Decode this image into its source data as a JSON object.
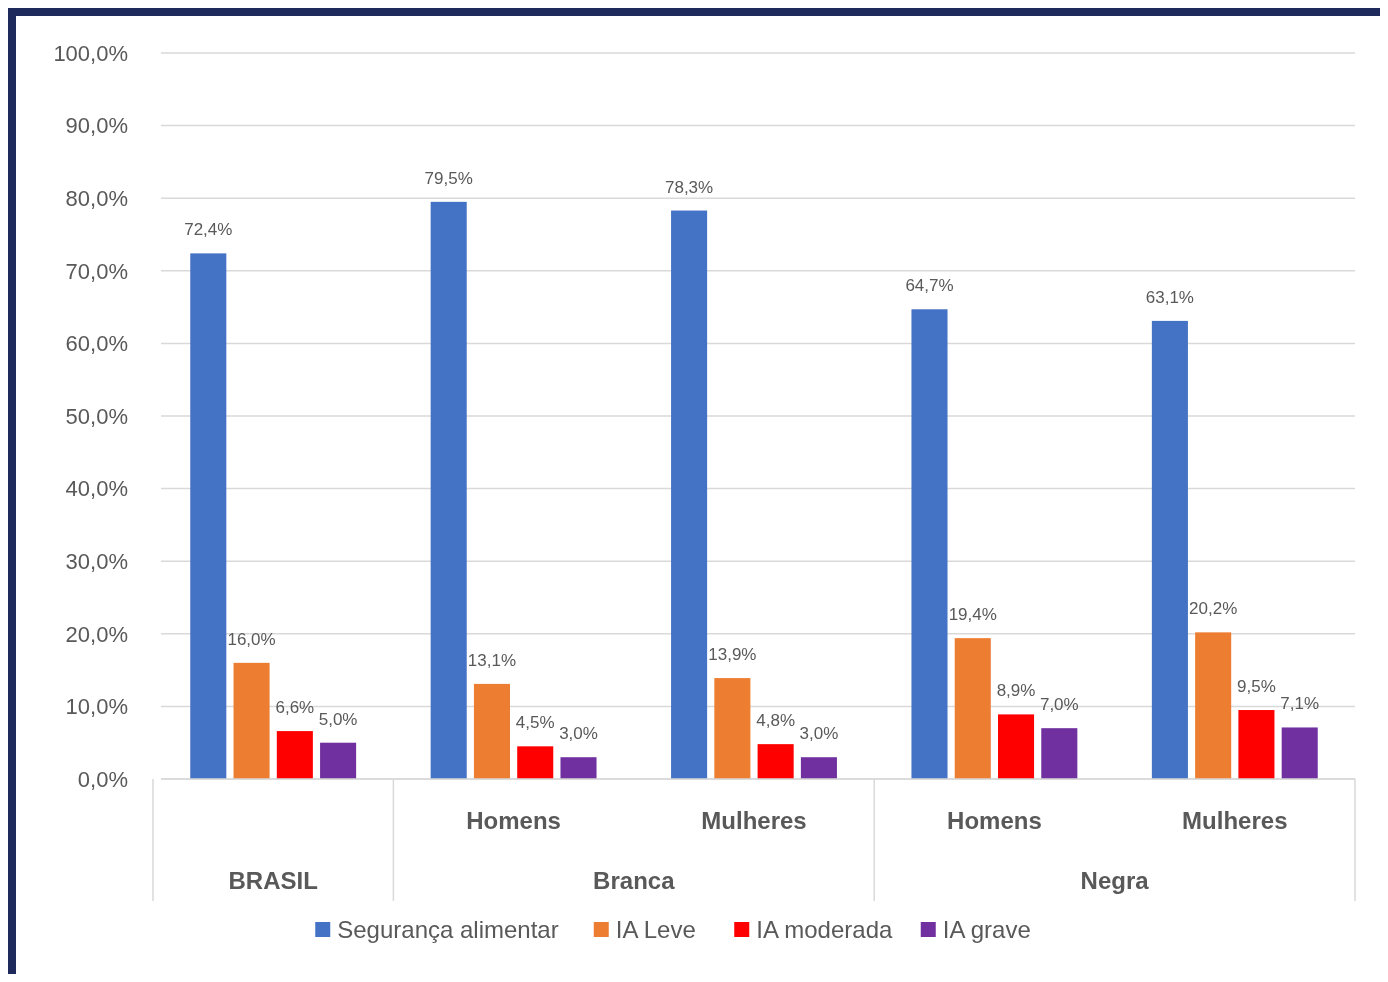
{
  "chart_data": {
    "type": "bar",
    "categories": [
      null,
      "Homens",
      "Mulheres",
      "Homens",
      "Mulheres"
    ],
    "annotations": [
      "BRASIL",
      "Branca",
      "Negra"
    ],
    "series": [
      {
        "name": "Segurança alimentar",
        "color": "#4472c4",
        "values": [
          72.4,
          79.5,
          78.3,
          64.7,
          63.1
        ],
        "value_labels": [
          "72,4%",
          "79,5%",
          "78,3%",
          "64,7%",
          "63,1%"
        ]
      },
      {
        "name": "IA Leve",
        "color": "#ed7d31",
        "values": [
          16.0,
          13.1,
          13.9,
          19.4,
          20.2
        ],
        "value_labels": [
          "16,0%",
          "13,1%",
          "13,9%",
          "19,4%",
          "20,2%"
        ]
      },
      {
        "name": "IA moderada",
        "color": "#ff0000",
        "values": [
          6.6,
          4.5,
          4.8,
          8.9,
          9.5
        ],
        "value_labels": [
          "6,6%",
          "4,5%",
          "4,8%",
          "8,9%",
          "9,5%"
        ]
      },
      {
        "name": "IA grave",
        "color": "#7030a0",
        "values": [
          5.0,
          3.0,
          3.0,
          7.0,
          7.1
        ],
        "value_labels": [
          "5,0%",
          "3,0%",
          "3,0%",
          "7,0%",
          "7,1%"
        ]
      }
    ],
    "ylim": [
      0,
      100
    ],
    "yticks": [
      {
        "value": 0,
        "label": "0,0%"
      },
      {
        "value": 10,
        "label": "10,0%"
      },
      {
        "value": 20,
        "label": "20,0%"
      },
      {
        "value": 30,
        "label": "30,0%"
      },
      {
        "value": 40,
        "label": "40,0%"
      },
      {
        "value": 50,
        "label": "50,0%"
      },
      {
        "value": 60,
        "label": "60,0%"
      },
      {
        "value": 70,
        "label": "70,0%"
      },
      {
        "value": 80,
        "label": "80,0%"
      },
      {
        "value": 90,
        "label": "90,0%"
      },
      {
        "value": 100,
        "label": "100,0%"
      }
    ],
    "grid": "y",
    "legend": "bottom"
  }
}
